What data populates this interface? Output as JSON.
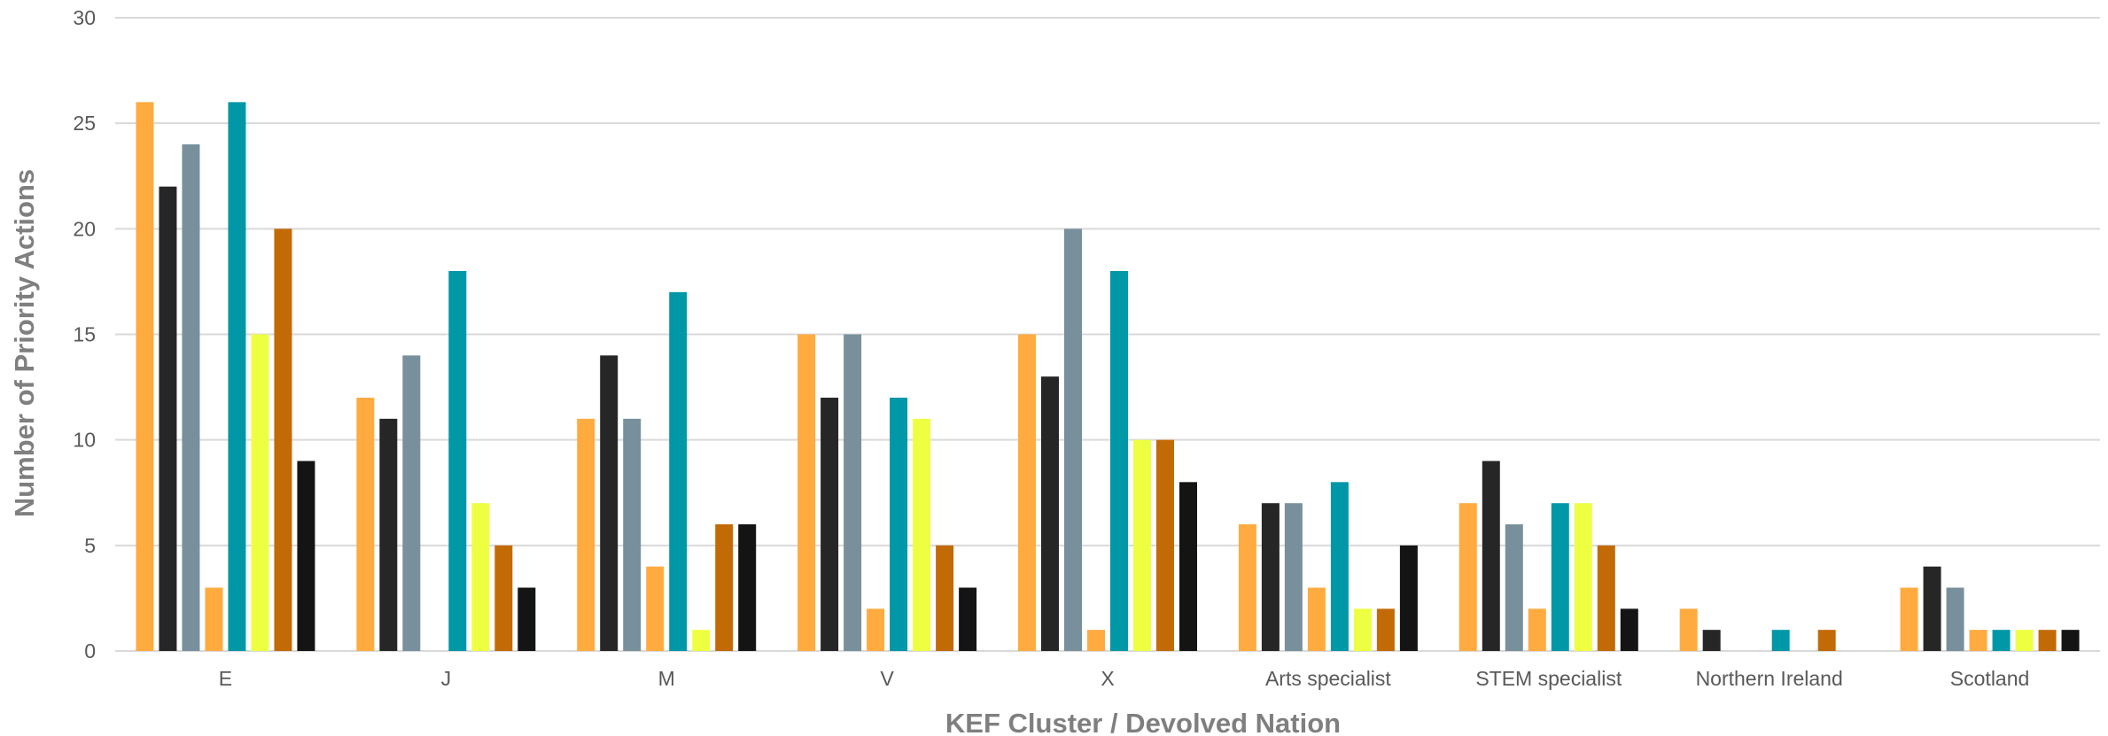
{
  "chart_data": {
    "type": "bar",
    "title": "",
    "xlabel": "KEF Cluster / Devolved Nation",
    "ylabel": "Number of Priority Actions",
    "ylim": [
      0,
      30
    ],
    "yticks": [
      0,
      5,
      10,
      15,
      20,
      25,
      30
    ],
    "grid": true,
    "legend": "none",
    "categories": [
      "E",
      "J",
      "M",
      "V",
      "X",
      "Arts specialist",
      "STEM specialist",
      "Northern Ireland",
      "Scotland"
    ],
    "series": [
      {
        "color": "#ffab40",
        "values": [
          26,
          12,
          11,
          15,
          15,
          6,
          7,
          2,
          3
        ]
      },
      {
        "color": "#262626",
        "values": [
          22,
          11,
          14,
          12,
          13,
          7,
          9,
          1,
          4
        ]
      },
      {
        "color": "#78909c",
        "values": [
          24,
          14,
          11,
          15,
          20,
          7,
          6,
          0,
          3
        ]
      },
      {
        "color": "#ffab40",
        "values": [
          3,
          0,
          4,
          2,
          1,
          3,
          2,
          0,
          1
        ]
      },
      {
        "color": "#0097a7",
        "values": [
          26,
          18,
          17,
          12,
          18,
          8,
          7,
          1,
          1
        ]
      },
      {
        "color": "#eeff41",
        "values": [
          15,
          7,
          1,
          11,
          10,
          2,
          7,
          0,
          1
        ]
      },
      {
        "color": "#c26a06",
        "values": [
          20,
          5,
          6,
          5,
          10,
          2,
          5,
          1,
          1
        ]
      },
      {
        "color": "#141414",
        "values": [
          9,
          3,
          6,
          3,
          8,
          5,
          2,
          0,
          1
        ]
      }
    ]
  }
}
